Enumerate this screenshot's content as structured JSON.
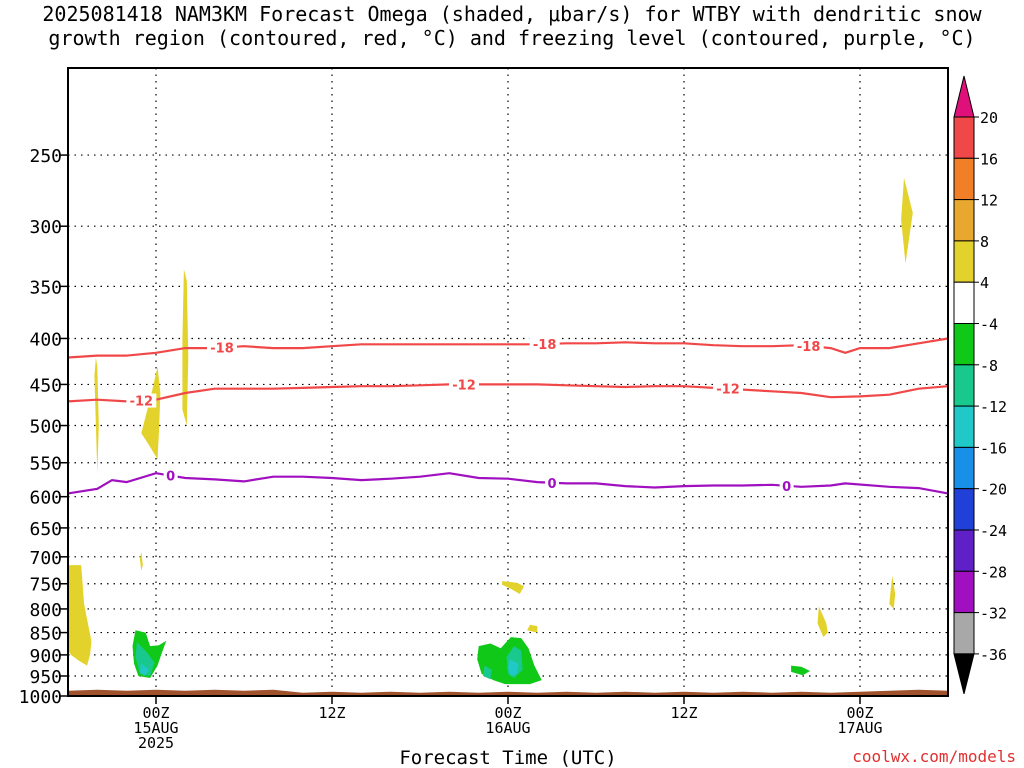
{
  "chart_data": {
    "type": "heatmap",
    "title": {
      "line1": "2025081418 NAM3KM Forecast Omega (shaded, μbar/s) for WTBY with dendritic snow",
      "line2": "growth region (contoured, red, °C) and freezing level (contoured, purple, °C)"
    },
    "xlabel": "Forecast Time (UTC)",
    "credit": "coolwx.com/models",
    "x_units": "hours after 2025-08-14 18Z",
    "xlim": [
      0,
      60
    ],
    "x_ticks": [
      {
        "h": 6,
        "lines": [
          "00Z",
          "15AUG",
          "2025"
        ]
      },
      {
        "h": 18,
        "lines": [
          "12Z"
        ]
      },
      {
        "h": 30,
        "lines": [
          "00Z",
          "16AUG"
        ]
      },
      {
        "h": 42,
        "lines": [
          "12Z"
        ]
      },
      {
        "h": 54,
        "lines": [
          "00Z",
          "17AUG"
        ]
      }
    ],
    "y_units": "hPa",
    "ylim": [
      1000,
      200
    ],
    "y_scale": "log",
    "y_ticks": [
      250,
      300,
      350,
      400,
      450,
      500,
      550,
      600,
      650,
      700,
      750,
      800,
      850,
      900,
      950,
      1000
    ],
    "grid": true,
    "colorbar": {
      "labels": [
        "20",
        "16",
        "12",
        "8",
        "4",
        "-4",
        "-8",
        "-12",
        "-16",
        "-20",
        "-24",
        "-28",
        "-32",
        "-36"
      ],
      "max_color": "#e0107a",
      "bins": [
        {
          "range": [
            16,
            20
          ],
          "color": "#f04848"
        },
        {
          "range": [
            12,
            16
          ],
          "color": "#f07f28"
        },
        {
          "range": [
            8,
            12
          ],
          "color": "#e8a830"
        },
        {
          "range": [
            4,
            8
          ],
          "color": "#e4d22c"
        },
        {
          "range": [
            -4,
            4
          ],
          "color": "#ffffff"
        },
        {
          "range": [
            -8,
            -4
          ],
          "color": "#10c818"
        },
        {
          "range": [
            -12,
            -8
          ],
          "color": "#18c88c"
        },
        {
          "range": [
            -16,
            -12
          ],
          "color": "#20c8c8"
        },
        {
          "range": [
            -20,
            -16
          ],
          "color": "#1890e8"
        },
        {
          "range": [
            -24,
            -20
          ],
          "color": "#2040d8"
        },
        {
          "range": [
            -28,
            -24
          ],
          "color": "#6020c8"
        },
        {
          "range": [
            -32,
            -28
          ],
          "color": "#a010c0"
        },
        {
          "range": [
            -36,
            -32
          ],
          "color": "#a8a8a8"
        }
      ],
      "min_color": "#000000"
    },
    "terrain_color": "#a0522d",
    "contours": [
      {
        "value": -18,
        "color": "#f04848",
        "units": "°C",
        "points": [
          [
            0,
            420
          ],
          [
            2,
            418
          ],
          [
            4,
            418
          ],
          [
            6,
            415
          ],
          [
            8,
            410
          ],
          [
            10,
            410
          ],
          [
            12,
            408
          ],
          [
            14,
            410
          ],
          [
            16,
            410
          ],
          [
            18,
            408
          ],
          [
            20,
            406
          ],
          [
            22,
            406
          ],
          [
            24,
            406
          ],
          [
            26,
            406
          ],
          [
            28,
            406
          ],
          [
            30,
            406
          ],
          [
            32,
            406
          ],
          [
            34,
            405
          ],
          [
            36,
            405
          ],
          [
            38,
            404
          ],
          [
            40,
            405
          ],
          [
            42,
            405
          ],
          [
            44,
            407
          ],
          [
            46,
            408
          ],
          [
            48,
            408
          ],
          [
            50,
            407
          ],
          [
            52,
            410
          ],
          [
            53,
            415
          ],
          [
            54,
            410
          ],
          [
            56,
            410
          ],
          [
            58,
            405
          ],
          [
            60,
            400
          ]
        ],
        "labels": [
          {
            "h": 10.5,
            "text": "-18"
          },
          {
            "h": 32.5,
            "text": "-18"
          },
          {
            "h": 50.5,
            "text": "-18"
          }
        ]
      },
      {
        "value": -12,
        "color": "#f04848",
        "units": "°C",
        "points": [
          [
            0,
            470
          ],
          [
            2,
            468
          ],
          [
            4,
            470
          ],
          [
            6,
            468
          ],
          [
            8,
            460
          ],
          [
            10,
            455
          ],
          [
            12,
            455
          ],
          [
            14,
            455
          ],
          [
            16,
            454
          ],
          [
            18,
            453
          ],
          [
            20,
            452
          ],
          [
            22,
            452
          ],
          [
            24,
            451
          ],
          [
            26,
            450
          ],
          [
            28,
            450
          ],
          [
            30,
            450
          ],
          [
            32,
            450
          ],
          [
            34,
            451
          ],
          [
            36,
            452
          ],
          [
            38,
            453
          ],
          [
            40,
            452
          ],
          [
            42,
            452
          ],
          [
            44,
            454
          ],
          [
            46,
            456
          ],
          [
            48,
            458
          ],
          [
            50,
            460
          ],
          [
            52,
            465
          ],
          [
            54,
            464
          ],
          [
            56,
            462
          ],
          [
            58,
            455
          ],
          [
            60,
            452
          ]
        ],
        "labels": [
          {
            "h": 5.0,
            "text": "-12"
          },
          {
            "h": 27.0,
            "text": "-12"
          },
          {
            "h": 45.0,
            "text": "-12"
          }
        ]
      },
      {
        "value": 0,
        "color": "#a010c0",
        "units": "°C",
        "points": [
          [
            0,
            595
          ],
          [
            2,
            588
          ],
          [
            3,
            575
          ],
          [
            4,
            578
          ],
          [
            6,
            565
          ],
          [
            8,
            572
          ],
          [
            10,
            574
          ],
          [
            12,
            577
          ],
          [
            14,
            570
          ],
          [
            16,
            570
          ],
          [
            18,
            572
          ],
          [
            20,
            575
          ],
          [
            22,
            573
          ],
          [
            24,
            570
          ],
          [
            26,
            565
          ],
          [
            28,
            572
          ],
          [
            30,
            573
          ],
          [
            32,
            578
          ],
          [
            34,
            580
          ],
          [
            36,
            580
          ],
          [
            38,
            584
          ],
          [
            40,
            586
          ],
          [
            42,
            584
          ],
          [
            44,
            583
          ],
          [
            46,
            583
          ],
          [
            48,
            582
          ],
          [
            50,
            585
          ],
          [
            52,
            583
          ],
          [
            53,
            580
          ],
          [
            56,
            585
          ],
          [
            58,
            587
          ],
          [
            60,
            595
          ]
        ],
        "labels": [
          {
            "h": 7,
            "text": "0"
          },
          {
            "h": 33,
            "text": "0"
          },
          {
            "h": 49,
            "text": "0"
          }
        ]
      }
    ],
    "shaded_regions": [
      {
        "level": "4 to 8",
        "color": "#e4d22c",
        "points": [
          [
            0,
            715
          ],
          [
            0.9,
            715
          ],
          [
            1.1,
            790
          ],
          [
            1.6,
            870
          ],
          [
            1.5,
            900
          ],
          [
            1.3,
            925
          ],
          [
            0.8,
            915
          ],
          [
            0.2,
            900
          ],
          [
            0,
            890
          ]
        ]
      },
      {
        "level": "4 to 8",
        "color": "#e4d22c",
        "points": [
          [
            1.9,
            420
          ],
          [
            2.0,
            430
          ],
          [
            2.1,
            500
          ],
          [
            2.0,
            565
          ],
          [
            1.9,
            500
          ],
          [
            1.8,
            440
          ]
        ]
      },
      {
        "level": "4 to 8",
        "color": "#e4d22c",
        "points": [
          [
            6.1,
            430
          ],
          [
            6.3,
            460
          ],
          [
            6.2,
            510
          ],
          [
            6.1,
            545
          ],
          [
            5.5,
            525
          ],
          [
            5.0,
            510
          ],
          [
            5.7,
            460
          ]
        ]
      },
      {
        "level": "4 to 8",
        "color": "#e4d22c",
        "points": [
          [
            7.9,
            335
          ],
          [
            8.1,
            345
          ],
          [
            8.2,
            420
          ],
          [
            8.1,
            500
          ],
          [
            7.8,
            480
          ],
          [
            7.8,
            400
          ]
        ]
      },
      {
        "level": "4 to 8",
        "color": "#e4d22c",
        "points": [
          [
            5.0,
            690
          ],
          [
            5.1,
            715
          ],
          [
            5.0,
            725
          ],
          [
            4.9,
            705
          ]
        ]
      },
      {
        "level": "4 to 8",
        "color": "#e4d22c",
        "points": [
          [
            29.6,
            745
          ],
          [
            30.6,
            748
          ],
          [
            31.1,
            755
          ],
          [
            30.8,
            770
          ],
          [
            30.2,
            760
          ],
          [
            29.6,
            752
          ]
        ]
      },
      {
        "level": "4 to 8",
        "color": "#e4d22c",
        "points": [
          [
            31.5,
            833
          ],
          [
            32.0,
            836
          ],
          [
            32.0,
            850
          ],
          [
            31.3,
            845
          ]
        ]
      },
      {
        "level": "4 to 8",
        "color": "#e4d22c",
        "points": [
          [
            51.2,
            795
          ],
          [
            51.7,
            830
          ],
          [
            51.8,
            850
          ],
          [
            51.5,
            860
          ],
          [
            51.1,
            830
          ]
        ]
      },
      {
        "level": "4 to 8",
        "color": "#e4d22c",
        "points": [
          [
            56.2,
            735
          ],
          [
            56.4,
            770
          ],
          [
            56.3,
            800
          ],
          [
            56.0,
            790
          ],
          [
            56.1,
            760
          ]
        ]
      },
      {
        "level": "4 to 8",
        "color": "#e4d22c",
        "points": [
          [
            57.0,
            265
          ],
          [
            57.6,
            290
          ],
          [
            57.1,
            330
          ],
          [
            56.8,
            295
          ]
        ]
      },
      {
        "level": "-8 to -4",
        "color": "#10c818",
        "points": [
          [
            4.6,
            845
          ],
          [
            5.3,
            850
          ],
          [
            5.6,
            880
          ],
          [
            6.2,
            878
          ],
          [
            6.7,
            868
          ],
          [
            6.4,
            895
          ],
          [
            6.1,
            925
          ],
          [
            5.6,
            955
          ],
          [
            4.8,
            950
          ],
          [
            4.5,
            920
          ],
          [
            4.4,
            880
          ]
        ]
      },
      {
        "level": "-8 to -4",
        "color": "#10c818",
        "points": [
          [
            28.0,
            880
          ],
          [
            28.8,
            874
          ],
          [
            29.5,
            885
          ],
          [
            30.2,
            860
          ],
          [
            30.9,
            862
          ],
          [
            31.4,
            885
          ],
          [
            31.8,
            925
          ],
          [
            32.3,
            960
          ],
          [
            31.5,
            970
          ],
          [
            29.8,
            970
          ],
          [
            29.0,
            960
          ],
          [
            28.2,
            945
          ],
          [
            27.9,
            910
          ]
        ]
      },
      {
        "level": "-8 to -4",
        "color": "#10c818",
        "points": [
          [
            49.3,
            925
          ],
          [
            50.0,
            928
          ],
          [
            50.6,
            938
          ],
          [
            50.1,
            948
          ],
          [
            49.3,
            940
          ]
        ]
      },
      {
        "level": "-12 to -8",
        "color": "#18c88c",
        "points": [
          [
            4.7,
            870
          ],
          [
            5.4,
            895
          ],
          [
            5.9,
            918
          ],
          [
            5.6,
            950
          ],
          [
            4.9,
            945
          ],
          [
            4.6,
            905
          ]
        ]
      },
      {
        "level": "-12 to -8",
        "color": "#18c88c",
        "points": [
          [
            30.4,
            880
          ],
          [
            30.9,
            890
          ],
          [
            31.0,
            935
          ],
          [
            30.4,
            955
          ],
          [
            30.0,
            945
          ],
          [
            29.9,
            905
          ]
        ]
      },
      {
        "level": "-12 to -8",
        "color": "#18c88c",
        "points": [
          [
            28.4,
            925
          ],
          [
            28.9,
            935
          ],
          [
            28.8,
            958
          ],
          [
            28.3,
            950
          ]
        ]
      },
      {
        "level": "-16 to -12",
        "color": "#20c8c8",
        "points": [
          [
            5.0,
            920
          ],
          [
            5.5,
            935
          ],
          [
            5.2,
            950
          ],
          [
            4.9,
            940
          ]
        ]
      },
      {
        "level": "-16 to -12",
        "color": "#20c8c8",
        "points": [
          [
            30.1,
            910
          ],
          [
            30.7,
            920
          ],
          [
            30.6,
            945
          ],
          [
            30.2,
            950
          ],
          [
            30.0,
            930
          ]
        ]
      }
    ]
  }
}
